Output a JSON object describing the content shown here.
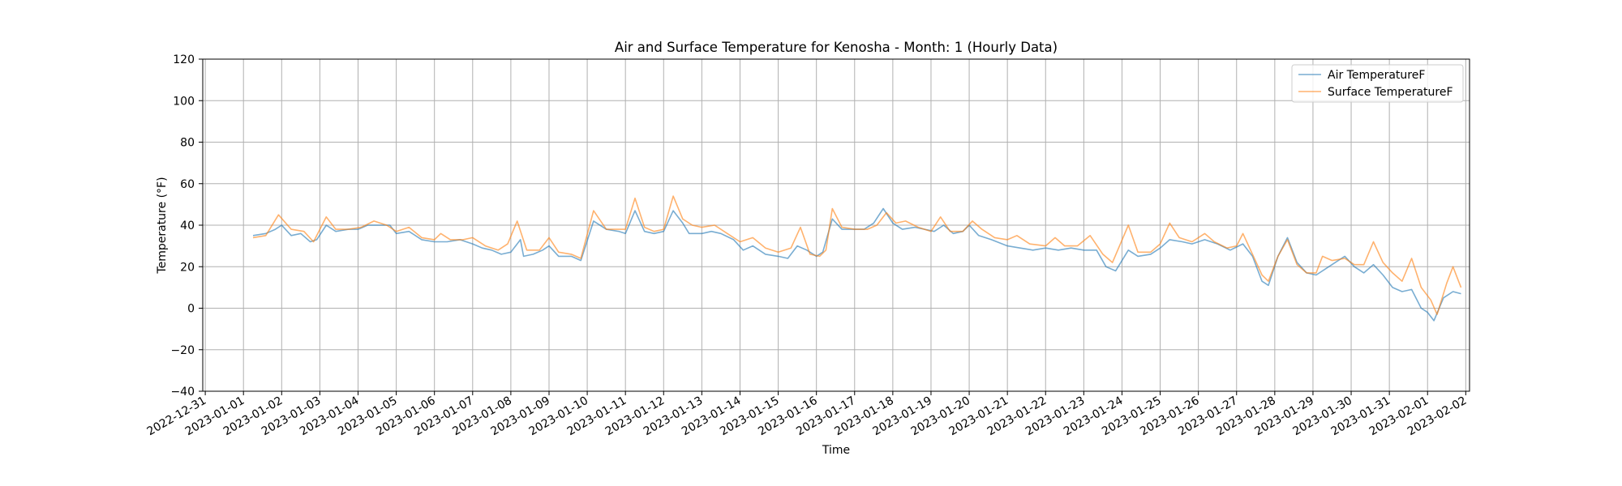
{
  "chart_data": {
    "type": "line",
    "title": "Air and Surface Temperature for Kenosha - Month: 1 (Hourly Data)",
    "xlabel": "Time",
    "ylabel": "Temperature (°F)",
    "ylim": [
      -40,
      120
    ],
    "xlim": [
      "2022-12-31",
      "2023-02-02"
    ],
    "y_ticks": [
      -40,
      -20,
      0,
      20,
      40,
      60,
      80,
      100,
      120
    ],
    "x_ticks": [
      "2022-12-31",
      "2023-01-01",
      "2023-01-02",
      "2023-01-03",
      "2023-01-04",
      "2023-01-05",
      "2023-01-06",
      "2023-01-07",
      "2023-01-08",
      "2023-01-09",
      "2023-01-10",
      "2023-01-11",
      "2023-01-12",
      "2023-01-13",
      "2023-01-14",
      "2023-01-15",
      "2023-01-16",
      "2023-01-17",
      "2023-01-18",
      "2023-01-19",
      "2023-01-20",
      "2023-01-21",
      "2023-01-22",
      "2023-01-23",
      "2023-01-24",
      "2023-01-25",
      "2023-01-26",
      "2023-01-27",
      "2023-01-28",
      "2023-01-29",
      "2023-01-30",
      "2023-01-31",
      "2023-02-01",
      "2023-02-02"
    ],
    "grid": true,
    "legend_position": "top-right",
    "series": [
      {
        "name": "Air TemperatureF",
        "color": "#1f77b4",
        "points": [
          [
            "2023-01-01T06:00",
            35
          ],
          [
            "2023-01-01T14:00",
            36
          ],
          [
            "2023-01-01T20:00",
            38
          ],
          [
            "2023-01-02T00:00",
            40
          ],
          [
            "2023-01-02T06:00",
            35
          ],
          [
            "2023-01-02T12:00",
            36
          ],
          [
            "2023-01-02T18:00",
            32
          ],
          [
            "2023-01-02T22:00",
            33
          ],
          [
            "2023-01-03T04:00",
            40
          ],
          [
            "2023-01-03T10:00",
            37
          ],
          [
            "2023-01-03T18:00",
            38
          ],
          [
            "2023-01-04T00:00",
            38
          ],
          [
            "2023-01-04T06:00",
            40
          ],
          [
            "2023-01-04T14:00",
            40
          ],
          [
            "2023-01-04T20:00",
            40
          ],
          [
            "2023-01-05T00:00",
            36
          ],
          [
            "2023-01-05T08:00",
            37
          ],
          [
            "2023-01-05T16:00",
            33
          ],
          [
            "2023-01-06T00:00",
            32
          ],
          [
            "2023-01-06T08:00",
            32
          ],
          [
            "2023-01-06T16:00",
            33
          ],
          [
            "2023-01-07T00:00",
            31
          ],
          [
            "2023-01-07T06:00",
            29
          ],
          [
            "2023-01-07T12:00",
            28
          ],
          [
            "2023-01-07T18:00",
            26
          ],
          [
            "2023-01-08T00:00",
            27
          ],
          [
            "2023-01-08T06:00",
            33
          ],
          [
            "2023-01-08T08:00",
            25
          ],
          [
            "2023-01-08T14:00",
            26
          ],
          [
            "2023-01-08T20:00",
            28
          ],
          [
            "2023-01-09T00:00",
            30
          ],
          [
            "2023-01-09T06:00",
            25
          ],
          [
            "2023-01-09T14:00",
            25
          ],
          [
            "2023-01-09T20:00",
            23
          ],
          [
            "2023-01-10T04:00",
            42
          ],
          [
            "2023-01-10T12:00",
            38
          ],
          [
            "2023-01-10T20:00",
            37
          ],
          [
            "2023-01-11T00:00",
            36
          ],
          [
            "2023-01-11T06:00",
            47
          ],
          [
            "2023-01-11T12:00",
            37
          ],
          [
            "2023-01-11T18:00",
            36
          ],
          [
            "2023-01-12T00:00",
            37
          ],
          [
            "2023-01-12T06:00",
            47
          ],
          [
            "2023-01-12T12:00",
            41
          ],
          [
            "2023-01-12T16:00",
            36
          ],
          [
            "2023-01-13T00:00",
            36
          ],
          [
            "2023-01-13T06:00",
            37
          ],
          [
            "2023-01-13T12:00",
            36
          ],
          [
            "2023-01-13T20:00",
            33
          ],
          [
            "2023-01-14T02:00",
            28
          ],
          [
            "2023-01-14T08:00",
            30
          ],
          [
            "2023-01-14T16:00",
            26
          ],
          [
            "2023-01-15T00:00",
            25
          ],
          [
            "2023-01-15T06:00",
            24
          ],
          [
            "2023-01-15T12:00",
            30
          ],
          [
            "2023-01-15T18:00",
            28
          ],
          [
            "2023-01-16T00:00",
            25
          ],
          [
            "2023-01-16T04:00",
            27
          ],
          [
            "2023-01-16T10:00",
            43
          ],
          [
            "2023-01-16T16:00",
            38
          ],
          [
            "2023-01-17T00:00",
            38
          ],
          [
            "2023-01-17T06:00",
            38
          ],
          [
            "2023-01-17T12:00",
            41
          ],
          [
            "2023-01-17T18:00",
            48
          ],
          [
            "2023-01-18T00:00",
            41
          ],
          [
            "2023-01-18T06:00",
            38
          ],
          [
            "2023-01-18T14:00",
            39
          ],
          [
            "2023-01-18T20:00",
            38
          ],
          [
            "2023-01-19T02:00",
            37
          ],
          [
            "2023-01-19T08:00",
            40
          ],
          [
            "2023-01-19T14:00",
            36
          ],
          [
            "2023-01-19T20:00",
            37
          ],
          [
            "2023-01-20T00:00",
            40
          ],
          [
            "2023-01-20T06:00",
            35
          ],
          [
            "2023-01-20T14:00",
            33
          ],
          [
            "2023-01-21T00:00",
            30
          ],
          [
            "2023-01-21T08:00",
            29
          ],
          [
            "2023-01-21T16:00",
            28
          ],
          [
            "2023-01-22T00:00",
            29
          ],
          [
            "2023-01-22T08:00",
            28
          ],
          [
            "2023-01-22T16:00",
            29
          ],
          [
            "2023-01-23T00:00",
            28
          ],
          [
            "2023-01-23T08:00",
            28
          ],
          [
            "2023-01-23T14:00",
            20
          ],
          [
            "2023-01-23T20:00",
            18
          ],
          [
            "2023-01-24T04:00",
            28
          ],
          [
            "2023-01-24T10:00",
            25
          ],
          [
            "2023-01-24T18:00",
            26
          ],
          [
            "2023-01-25T00:00",
            29
          ],
          [
            "2023-01-25T06:00",
            33
          ],
          [
            "2023-01-25T14:00",
            32
          ],
          [
            "2023-01-25T20:00",
            31
          ],
          [
            "2023-01-26T04:00",
            33
          ],
          [
            "2023-01-26T12:00",
            31
          ],
          [
            "2023-01-26T20:00",
            28
          ],
          [
            "2023-01-27T04:00",
            31
          ],
          [
            "2023-01-27T10:00",
            25
          ],
          [
            "2023-01-27T16:00",
            13
          ],
          [
            "2023-01-27T20:00",
            11
          ],
          [
            "2023-01-28T02:00",
            25
          ],
          [
            "2023-01-28T08:00",
            34
          ],
          [
            "2023-01-28T14:00",
            22
          ],
          [
            "2023-01-28T20:00",
            17
          ],
          [
            "2023-01-29T02:00",
            16
          ],
          [
            "2023-01-29T08:00",
            19
          ],
          [
            "2023-01-29T14:00",
            22
          ],
          [
            "2023-01-29T20:00",
            25
          ],
          [
            "2023-01-30T02:00",
            20
          ],
          [
            "2023-01-30T08:00",
            17
          ],
          [
            "2023-01-30T14:00",
            21
          ],
          [
            "2023-01-30T20:00",
            16
          ],
          [
            "2023-01-31T02:00",
            10
          ],
          [
            "2023-01-31T08:00",
            8
          ],
          [
            "2023-01-31T14:00",
            9
          ],
          [
            "2023-01-31T20:00",
            0
          ],
          [
            "2023-02-01T00:00",
            -2
          ],
          [
            "2023-02-01T04:00",
            -6
          ],
          [
            "2023-02-01T10:00",
            5
          ],
          [
            "2023-02-01T16:00",
            8
          ],
          [
            "2023-02-01T21:00",
            7
          ]
        ]
      },
      {
        "name": "Surface TemperatureF",
        "color": "#ff7f0e",
        "points": [
          [
            "2023-01-01T06:00",
            34
          ],
          [
            "2023-01-01T14:00",
            35
          ],
          [
            "2023-01-01T22:00",
            45
          ],
          [
            "2023-01-02T06:00",
            38
          ],
          [
            "2023-01-02T14:00",
            37
          ],
          [
            "2023-01-02T20:00",
            32
          ],
          [
            "2023-01-03T04:00",
            44
          ],
          [
            "2023-01-03T10:00",
            38
          ],
          [
            "2023-01-03T18:00",
            38
          ],
          [
            "2023-01-04T02:00",
            39
          ],
          [
            "2023-01-04T10:00",
            42
          ],
          [
            "2023-01-04T18:00",
            40
          ],
          [
            "2023-01-05T00:00",
            37
          ],
          [
            "2023-01-05T08:00",
            39
          ],
          [
            "2023-01-05T16:00",
            34
          ],
          [
            "2023-01-06T00:00",
            33
          ],
          [
            "2023-01-06T04:00",
            36
          ],
          [
            "2023-01-06T10:00",
            33
          ],
          [
            "2023-01-06T18:00",
            33
          ],
          [
            "2023-01-07T00:00",
            34
          ],
          [
            "2023-01-07T08:00",
            30
          ],
          [
            "2023-01-07T16:00",
            28
          ],
          [
            "2023-01-07T22:00",
            31
          ],
          [
            "2023-01-08T04:00",
            42
          ],
          [
            "2023-01-08T10:00",
            28
          ],
          [
            "2023-01-08T18:00",
            28
          ],
          [
            "2023-01-09T00:00",
            34
          ],
          [
            "2023-01-09T06:00",
            27
          ],
          [
            "2023-01-09T14:00",
            26
          ],
          [
            "2023-01-09T20:00",
            24
          ],
          [
            "2023-01-10T04:00",
            47
          ],
          [
            "2023-01-10T12:00",
            38
          ],
          [
            "2023-01-10T20:00",
            38
          ],
          [
            "2023-01-11T00:00",
            38
          ],
          [
            "2023-01-11T06:00",
            53
          ],
          [
            "2023-01-11T12:00",
            39
          ],
          [
            "2023-01-11T18:00",
            37
          ],
          [
            "2023-01-12T00:00",
            38
          ],
          [
            "2023-01-12T06:00",
            54
          ],
          [
            "2023-01-12T12:00",
            43
          ],
          [
            "2023-01-12T18:00",
            40
          ],
          [
            "2023-01-13T00:00",
            39
          ],
          [
            "2023-01-13T08:00",
            40
          ],
          [
            "2023-01-13T16:00",
            36
          ],
          [
            "2023-01-14T00:00",
            32
          ],
          [
            "2023-01-14T08:00",
            34
          ],
          [
            "2023-01-14T16:00",
            29
          ],
          [
            "2023-01-15T00:00",
            27
          ],
          [
            "2023-01-15T08:00",
            29
          ],
          [
            "2023-01-15T14:00",
            39
          ],
          [
            "2023-01-15T20:00",
            26
          ],
          [
            "2023-01-16T02:00",
            25
          ],
          [
            "2023-01-16T06:00",
            28
          ],
          [
            "2023-01-16T10:00",
            48
          ],
          [
            "2023-01-16T16:00",
            39
          ],
          [
            "2023-01-17T00:00",
            38
          ],
          [
            "2023-01-17T08:00",
            38
          ],
          [
            "2023-01-17T14:00",
            40
          ],
          [
            "2023-01-17T20:00",
            46
          ],
          [
            "2023-01-18T02:00",
            41
          ],
          [
            "2023-01-18T08:00",
            42
          ],
          [
            "2023-01-18T16:00",
            39
          ],
          [
            "2023-01-19T00:00",
            37
          ],
          [
            "2023-01-19T06:00",
            44
          ],
          [
            "2023-01-19T12:00",
            37
          ],
          [
            "2023-01-19T20:00",
            37
          ],
          [
            "2023-01-20T02:00",
            42
          ],
          [
            "2023-01-20T08:00",
            38
          ],
          [
            "2023-01-20T16:00",
            34
          ],
          [
            "2023-01-21T00:00",
            33
          ],
          [
            "2023-01-21T06:00",
            35
          ],
          [
            "2023-01-21T14:00",
            31
          ],
          [
            "2023-01-22T00:00",
            30
          ],
          [
            "2023-01-22T06:00",
            34
          ],
          [
            "2023-01-22T12:00",
            30
          ],
          [
            "2023-01-22T20:00",
            30
          ],
          [
            "2023-01-23T04:00",
            35
          ],
          [
            "2023-01-23T12:00",
            26
          ],
          [
            "2023-01-23T18:00",
            22
          ],
          [
            "2023-01-24T04:00",
            40
          ],
          [
            "2023-01-24T10:00",
            27
          ],
          [
            "2023-01-24T18:00",
            27
          ],
          [
            "2023-01-25T00:00",
            31
          ],
          [
            "2023-01-25T06:00",
            41
          ],
          [
            "2023-01-25T12:00",
            34
          ],
          [
            "2023-01-25T20:00",
            32
          ],
          [
            "2023-01-26T04:00",
            36
          ],
          [
            "2023-01-26T10:00",
            32
          ],
          [
            "2023-01-26T18:00",
            29
          ],
          [
            "2023-01-27T00:00",
            30
          ],
          [
            "2023-01-27T04:00",
            36
          ],
          [
            "2023-01-27T10:00",
            26
          ],
          [
            "2023-01-27T16:00",
            16
          ],
          [
            "2023-01-27T20:00",
            13
          ],
          [
            "2023-01-28T02:00",
            25
          ],
          [
            "2023-01-28T08:00",
            33
          ],
          [
            "2023-01-28T14:00",
            21
          ],
          [
            "2023-01-28T20:00",
            17
          ],
          [
            "2023-01-29T02:00",
            17
          ],
          [
            "2023-01-29T06:00",
            25
          ],
          [
            "2023-01-29T12:00",
            23
          ],
          [
            "2023-01-29T20:00",
            24
          ],
          [
            "2023-01-30T02:00",
            21
          ],
          [
            "2023-01-30T08:00",
            21
          ],
          [
            "2023-01-30T14:00",
            32
          ],
          [
            "2023-01-30T20:00",
            22
          ],
          [
            "2023-01-31T02:00",
            17
          ],
          [
            "2023-01-31T08:00",
            13
          ],
          [
            "2023-01-31T14:00",
            24
          ],
          [
            "2023-01-31T20:00",
            10
          ],
          [
            "2023-02-01T02:00",
            4
          ],
          [
            "2023-02-01T06:00",
            -3
          ],
          [
            "2023-02-01T12:00",
            12
          ],
          [
            "2023-02-01T16:00",
            20
          ],
          [
            "2023-02-01T21:00",
            10
          ]
        ]
      }
    ]
  }
}
